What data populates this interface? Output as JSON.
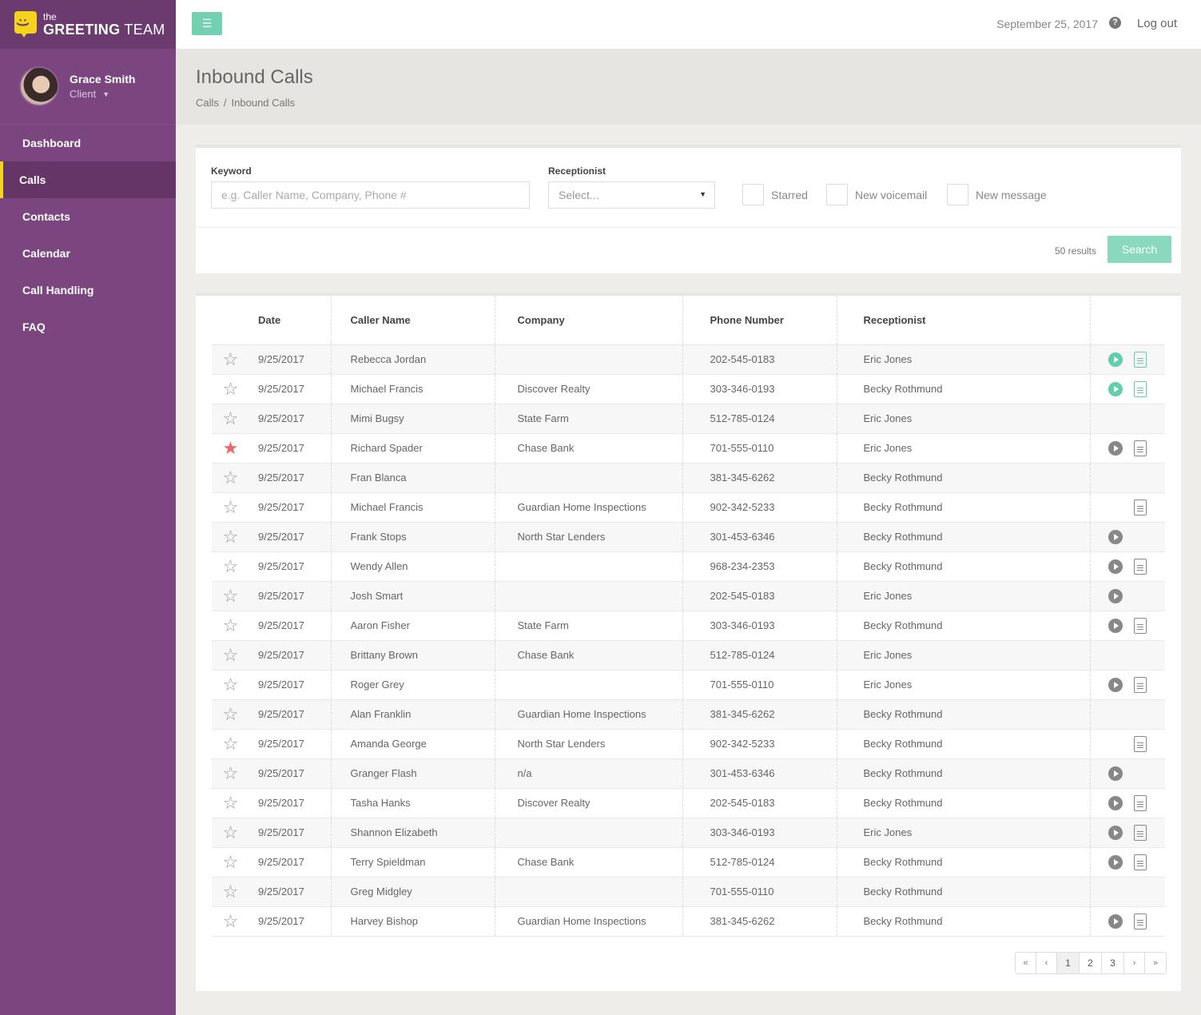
{
  "brand": {
    "the": "the",
    "name_bold": "GREETING",
    "name_rest": " TEAM"
  },
  "user": {
    "name": "Grace Smith",
    "role": "Client"
  },
  "nav": [
    {
      "label": "Dashboard",
      "active": false
    },
    {
      "label": "Calls",
      "active": true
    },
    {
      "label": "Contacts",
      "active": false
    },
    {
      "label": "Calendar",
      "active": false
    },
    {
      "label": "Call Handling",
      "active": false
    },
    {
      "label": "FAQ",
      "active": false
    }
  ],
  "topbar": {
    "date": "September 25, 2017",
    "logout": "Log out"
  },
  "page": {
    "title": "Inbound Calls",
    "breadcrumb": [
      "Calls",
      "Inbound Calls"
    ]
  },
  "filters": {
    "keyword_label": "Keyword",
    "keyword_placeholder": "e.g. Caller Name, Company, Phone #",
    "receptionist_label": "Receptionist",
    "receptionist_value": "Select...",
    "checkboxes": [
      "Starred",
      "New voicemail",
      "New message"
    ],
    "results": "50 results",
    "search_label": "Search"
  },
  "table": {
    "headers": [
      "Date",
      "Caller Name",
      "Company",
      "Phone Number",
      "Receptionist"
    ],
    "rows": [
      {
        "starred": false,
        "date": "9/25/2017",
        "name": "Rebecca Jordan",
        "company": "",
        "phone": "202-545-0183",
        "receptionist": "Eric Jones",
        "play": "new",
        "doc": "new"
      },
      {
        "starred": false,
        "date": "9/25/2017",
        "name": "Michael Francis",
        "company": "Discover Realty",
        "phone": "303-346-0193",
        "receptionist": "Becky Rothmund",
        "play": "new",
        "doc": "new"
      },
      {
        "starred": false,
        "date": "9/25/2017",
        "name": "Mimi Bugsy",
        "company": "State Farm",
        "phone": "512-785-0124",
        "receptionist": "Eric Jones",
        "play": "",
        "doc": ""
      },
      {
        "starred": true,
        "date": "9/25/2017",
        "name": "Richard Spader",
        "company": "Chase Bank",
        "phone": "701-555-0110",
        "receptionist": "Eric Jones",
        "play": "old",
        "doc": "old"
      },
      {
        "starred": false,
        "date": "9/25/2017",
        "name": "Fran Blanca",
        "company": "",
        "phone": "381-345-6262",
        "receptionist": "Becky Rothmund",
        "play": "",
        "doc": ""
      },
      {
        "starred": false,
        "date": "9/25/2017",
        "name": "Michael Francis",
        "company": "Guardian Home Inspections",
        "phone": "902-342-5233",
        "receptionist": "Becky Rothmund",
        "play": "",
        "doc": "old"
      },
      {
        "starred": false,
        "date": "9/25/2017",
        "name": "Frank Stops",
        "company": "North Star Lenders",
        "phone": "301-453-6346",
        "receptionist": "Becky Rothmund",
        "play": "old",
        "doc": ""
      },
      {
        "starred": false,
        "date": "9/25/2017",
        "name": "Wendy Allen",
        "company": "",
        "phone": "968-234-2353",
        "receptionist": "Becky Rothmund",
        "play": "old",
        "doc": "old"
      },
      {
        "starred": false,
        "date": "9/25/2017",
        "name": "Josh Smart",
        "company": "",
        "phone": "202-545-0183",
        "receptionist": "Eric Jones",
        "play": "old",
        "doc": ""
      },
      {
        "starred": false,
        "date": "9/25/2017",
        "name": "Aaron Fisher",
        "company": "State Farm",
        "phone": "303-346-0193",
        "receptionist": "Becky Rothmund",
        "play": "old",
        "doc": "old"
      },
      {
        "starred": false,
        "date": "9/25/2017",
        "name": "Brittany Brown",
        "company": "Chase Bank",
        "phone": "512-785-0124",
        "receptionist": "Eric Jones",
        "play": "",
        "doc": ""
      },
      {
        "starred": false,
        "date": "9/25/2017",
        "name": "Roger Grey",
        "company": "",
        "phone": "701-555-0110",
        "receptionist": "Eric Jones",
        "play": "old",
        "doc": "old"
      },
      {
        "starred": false,
        "date": "9/25/2017",
        "name": "Alan Franklin",
        "company": "Guardian Home Inspections",
        "phone": "381-345-6262",
        "receptionist": "Becky Rothmund",
        "play": "",
        "doc": ""
      },
      {
        "starred": false,
        "date": "9/25/2017",
        "name": "Amanda George",
        "company": "North Star Lenders",
        "phone": "902-342-5233",
        "receptionist": "Becky Rothmund",
        "play": "",
        "doc": "old"
      },
      {
        "starred": false,
        "date": "9/25/2017",
        "name": "Granger Flash",
        "company": "n/a",
        "phone": "301-453-6346",
        "receptionist": "Becky Rothmund",
        "play": "old",
        "doc": ""
      },
      {
        "starred": false,
        "date": "9/25/2017",
        "name": "Tasha Hanks",
        "company": "Discover Realty",
        "phone": "202-545-0183",
        "receptionist": "Becky Rothmund",
        "play": "old",
        "doc": "old"
      },
      {
        "starred": false,
        "date": "9/25/2017",
        "name": "Shannon Elizabeth",
        "company": "",
        "phone": "303-346-0193",
        "receptionist": "Eric Jones",
        "play": "old",
        "doc": "old"
      },
      {
        "starred": false,
        "date": "9/25/2017",
        "name": "Terry Spieldman",
        "company": "Chase Bank",
        "phone": "512-785-0124",
        "receptionist": "Becky Rothmund",
        "play": "old",
        "doc": "old"
      },
      {
        "starred": false,
        "date": "9/25/2017",
        "name": "Greg Midgley",
        "company": "",
        "phone": "701-555-0110",
        "receptionist": "Becky Rothmund",
        "play": "",
        "doc": ""
      },
      {
        "starred": false,
        "date": "9/25/2017",
        "name": "Harvey Bishop",
        "company": "Guardian Home Inspections",
        "phone": "381-345-6262",
        "receptionist": "Becky Rothmund",
        "play": "old",
        "doc": "old"
      }
    ]
  },
  "pagination": {
    "first": "«",
    "prev": "‹",
    "pages": [
      "1",
      "2",
      "3"
    ],
    "current": "1",
    "next": "›",
    "last": "»"
  },
  "icons": {
    "menu": "menu-icon",
    "help": "help-icon",
    "star": "star-icon",
    "play": "play-icon",
    "doc": "document-icon",
    "caret": "caret-down-icon"
  },
  "colors": {
    "sidebar": "#7b467f",
    "accent": "#73d0b1",
    "brand_yellow": "#f5d21c",
    "star_active": "#f0646c"
  }
}
